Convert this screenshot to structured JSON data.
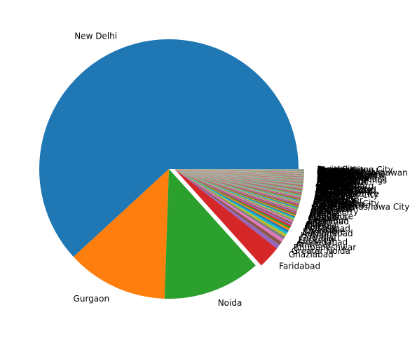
{
  "chart_data": {
    "type": "pie",
    "title": "",
    "start_angle_deg": 0,
    "direction": "counterclockwise",
    "palette": [
      "#1f77b4",
      "#ff7f0e",
      "#2ca02c",
      "#d62728",
      "#9467bd",
      "#8c564b",
      "#e377c2",
      "#7f7f7f",
      "#bcbd22",
      "#17becf"
    ],
    "labeled_slices": [
      {
        "label": "New Delhi",
        "value": 5473,
        "color": "#1f77b4"
      },
      {
        "label": "Gurgaon",
        "value": 1118,
        "color": "#ff7f0e"
      },
      {
        "label": "Noida",
        "value": 1080,
        "color": "#2ca02c"
      },
      {
        "label": "Faridabad",
        "value": 251,
        "color": "#d62728"
      }
    ],
    "tail_slices": {
      "count": 137,
      "total_value": 929,
      "legible_labels": [
        "Ghaziabad",
        "Greater Noida",
        "Bhubaneshwar",
        "Amritsar",
        "Ahmedabad",
        "Lucknow",
        "Guwahati",
        "Hawaii",
        "Aurangabad",
        "Bangalore",
        "Chennai",
        "Hyderabad",
        "Kolkata",
        "Mumbai",
        "Pune",
        "Agra",
        "Allahabad",
        "Dehradun",
        "Jaipur",
        "Kanpur",
        "Ludhiana",
        "Mangalore",
        "Mysore",
        "Nagpur",
        "Nashik",
        "Patna",
        "Puducherry",
        "Ranchi",
        "Surat",
        "Vadodara",
        "Varanasi",
        "Edinburgh",
        "Cedar Rapids/Iowa City",
        "Cape Town",
        "Rio de Janeiro",
        "Columbus",
        "Birmingham",
        "Huntington City",
        "Dalton",
        "Clatskanie",
        "Orlando",
        "Pensacola",
        "Manchester",
        "Sioux City",
        "Brasília",
        "Doha",
        "Jakarta",
        "Abu Dhabi",
        "London",
        "Singapore",
        "Dubai",
        "Sydney",
        "Wellington City",
        "Princeton",
        "Lakes Entrance",
        "Ottawa",
        "Colombo",
        "Inner City",
        "Makati City",
        "Pasay City",
        "Pocatello",
        "Rest of Hawaii",
        "San Juan City",
        "Secunderabad",
        "Tagaytay City",
        "Taguig City",
        "Tampa Bay",
        "Vernonia",
        "Waterloo",
        "Weirton",
        "Yorkton",
        "Ankara",
        "Istanbul",
        "Izmir",
        "Johannesburg",
        "Pretoria",
        "Randburg",
        "Davenport",
        "Des Moines",
        "Athens",
        "Albany",
        "Augusta",
        "Savannah",
        "Boise",
        "Balingup",
        "Beechworth",
        "Dicky Beach",
        "Flaxton",
        "Forrest",
        "Hepburn Springs",
        "Huskisson",
        "Inverloch",
        "Lorn",
        "Macedon",
        "Mayfield",
        "Middleton Beach",
        "Monroe",
        "Montville",
        "Ojo Caliente",
        "Palm Cove",
        "Paynesville",
        "Penola",
        "Phillip Island",
        "Potrero",
        "Trentham East",
        "Tanunda",
        "Victor Harbor",
        "Armidale",
        "Chatham-Kent",
        "Consort",
        "Vineland Station",
        "Winchester Bay",
        "Bandung",
        "Bogor",
        "Tangerang",
        "Auckland",
        "Hamilton",
        "Nelson",
        "Bandar Seri Begawan",
        "Miller",
        "Gainesville",
        "Macon",
        "Valdosta",
        "Boca Raton",
        "Fort Lauderdale",
        "Miami",
        "Ocala",
        "Palm Beach",
        "Sarasota",
        "Mohali",
        "Panchkula",
        "Zirakpur",
        "Quezon City",
        "Mandaluyong City",
        "Pasig City"
      ]
    }
  }
}
